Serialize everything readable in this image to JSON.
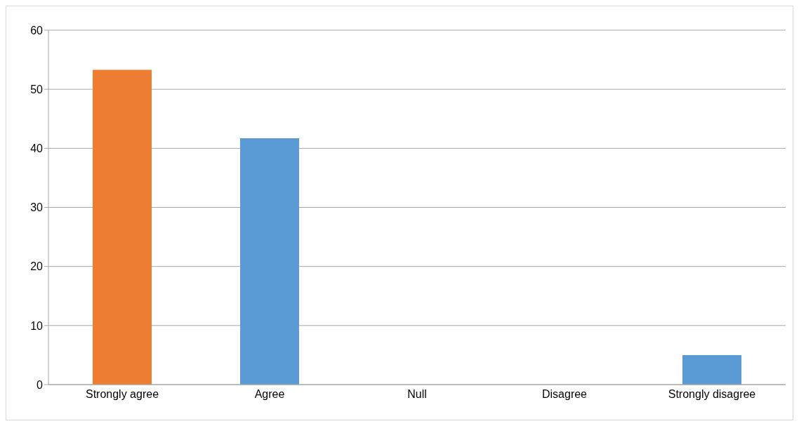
{
  "chart_data": {
    "type": "bar",
    "categories": [
      "Strongly agree",
      "Agree",
      "Null",
      "Disagree",
      "Strongly disagree"
    ],
    "values": [
      53.3,
      41.7,
      0,
      0,
      5
    ],
    "colors": [
      "#ed7d31",
      "#5b9bd5",
      "#5b9bd5",
      "#5b9bd5",
      "#5b9bd5"
    ],
    "ylim": [
      0,
      60
    ],
    "yticks": [
      0,
      10,
      20,
      30,
      40,
      50,
      60
    ],
    "grid": "y"
  }
}
